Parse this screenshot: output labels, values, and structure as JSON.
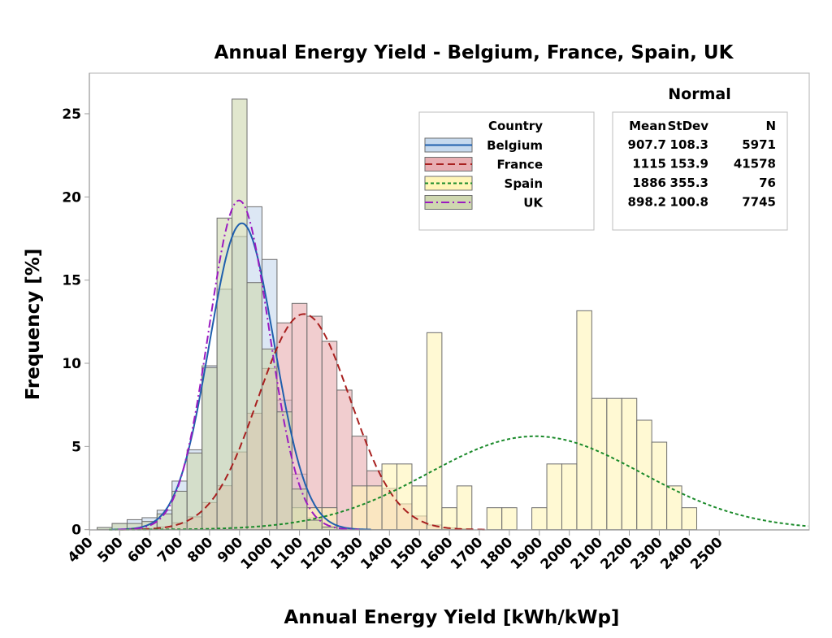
{
  "chart_data": {
    "type": "bar",
    "subtype": "overlaid-histogram-with-normal-fit",
    "title": "Annual Energy Yield - Belgium, France, Spain, UK",
    "xlabel": "Annual Energy Yield [kWh/kWp]",
    "ylabel": "Frequency [%]",
    "xlim": [
      400,
      2800
    ],
    "ylim": [
      0,
      27.5
    ],
    "bin_width": 50,
    "x_ticks": [
      400,
      500,
      600,
      700,
      800,
      900,
      1000,
      1100,
      1200,
      1300,
      1400,
      1500,
      1600,
      1700,
      1800,
      1900,
      2000,
      2100,
      2200,
      2300,
      2400,
      2500
    ],
    "y_ticks": [
      0,
      5,
      10,
      15,
      20,
      25
    ],
    "grid": false,
    "legend": {
      "title": "Country",
      "position": "top-right",
      "entries": [
        "Belgium",
        "France",
        "Spain",
        "UK"
      ]
    },
    "fit_table": {
      "title": "Normal",
      "headers": [
        "Mean",
        "StDev",
        "N"
      ],
      "rows": [
        [
          "907.7",
          "108.3",
          "5971"
        ],
        [
          "1115",
          "153.9",
          "41578"
        ],
        [
          "1886",
          "355.3",
          "76"
        ],
        [
          "898.2",
          "100.8",
          "7745"
        ]
      ]
    },
    "series": [
      {
        "name": "Belgium",
        "fill": "#c6d9ee",
        "line_color": "#1f5fad",
        "line_style": "solid",
        "mean": 907.7,
        "stdev": 108.3,
        "n": 5971,
        "bins": [
          450,
          500,
          550,
          600,
          650,
          700,
          750,
          800,
          850,
          900,
          950,
          1000,
          1050,
          1100,
          1150,
          1200
        ],
        "values": [
          0.13,
          0.37,
          0.6,
          0.72,
          1.17,
          2.92,
          4.8,
          9.85,
          14.45,
          17.62,
          19.41,
          16.24,
          7.79,
          3.34,
          0.73,
          0.16
        ]
      },
      {
        "name": "France",
        "fill": "#e8aeb2",
        "line_color": "#a8201f",
        "line_style": "dashed",
        "mean": 1115,
        "stdev": 153.9,
        "n": 41578,
        "bins": [
          600,
          650,
          700,
          750,
          800,
          850,
          900,
          950,
          1000,
          1050,
          1100,
          1150,
          1200,
          1250,
          1300,
          1350,
          1400,
          1450,
          1500,
          1550,
          1600,
          1650
        ],
        "values": [
          0.05,
          0.16,
          0.41,
          0.77,
          1.63,
          2.64,
          4.67,
          7.0,
          9.69,
          12.43,
          13.6,
          12.83,
          11.32,
          8.39,
          5.62,
          3.54,
          2.48,
          1.55,
          0.82,
          0.28,
          0.1,
          0.05
        ]
      },
      {
        "name": "Spain",
        "fill": "#fff5b8",
        "line_color": "#1a8a2a",
        "line_style": "dotted",
        "mean": 1886,
        "stdev": 355.3,
        "n": 76,
        "bins": [
          1100,
          1150,
          1200,
          1300,
          1350,
          1400,
          1450,
          1500,
          1550,
          1600,
          1650,
          1750,
          1800,
          1900,
          1950,
          2000,
          2050,
          2100,
          2150,
          2200,
          2250,
          2300,
          2350,
          2400
        ],
        "values": [
          1.32,
          1.32,
          1.32,
          2.63,
          2.63,
          3.95,
          3.95,
          2.63,
          11.84,
          1.32,
          2.63,
          1.32,
          1.32,
          1.32,
          3.95,
          3.95,
          13.16,
          7.89,
          7.89,
          7.89,
          6.58,
          5.26,
          2.63,
          1.32
        ]
      },
      {
        "name": "UK",
        "fill": "#cfd8b0",
        "line_color": "#9a1bc0",
        "line_style": "dash-dot",
        "mean": 898.2,
        "stdev": 100.8,
        "n": 7745,
        "bins": [
          450,
          500,
          550,
          600,
          650,
          700,
          750,
          800,
          850,
          900,
          950,
          1000,
          1050,
          1100,
          1150,
          1200
        ],
        "values": [
          0.13,
          0.37,
          0.37,
          0.49,
          0.95,
          2.31,
          4.61,
          9.74,
          18.73,
          25.88,
          14.85,
          10.86,
          7.08,
          2.44,
          0.57,
          0.16
        ]
      }
    ]
  }
}
